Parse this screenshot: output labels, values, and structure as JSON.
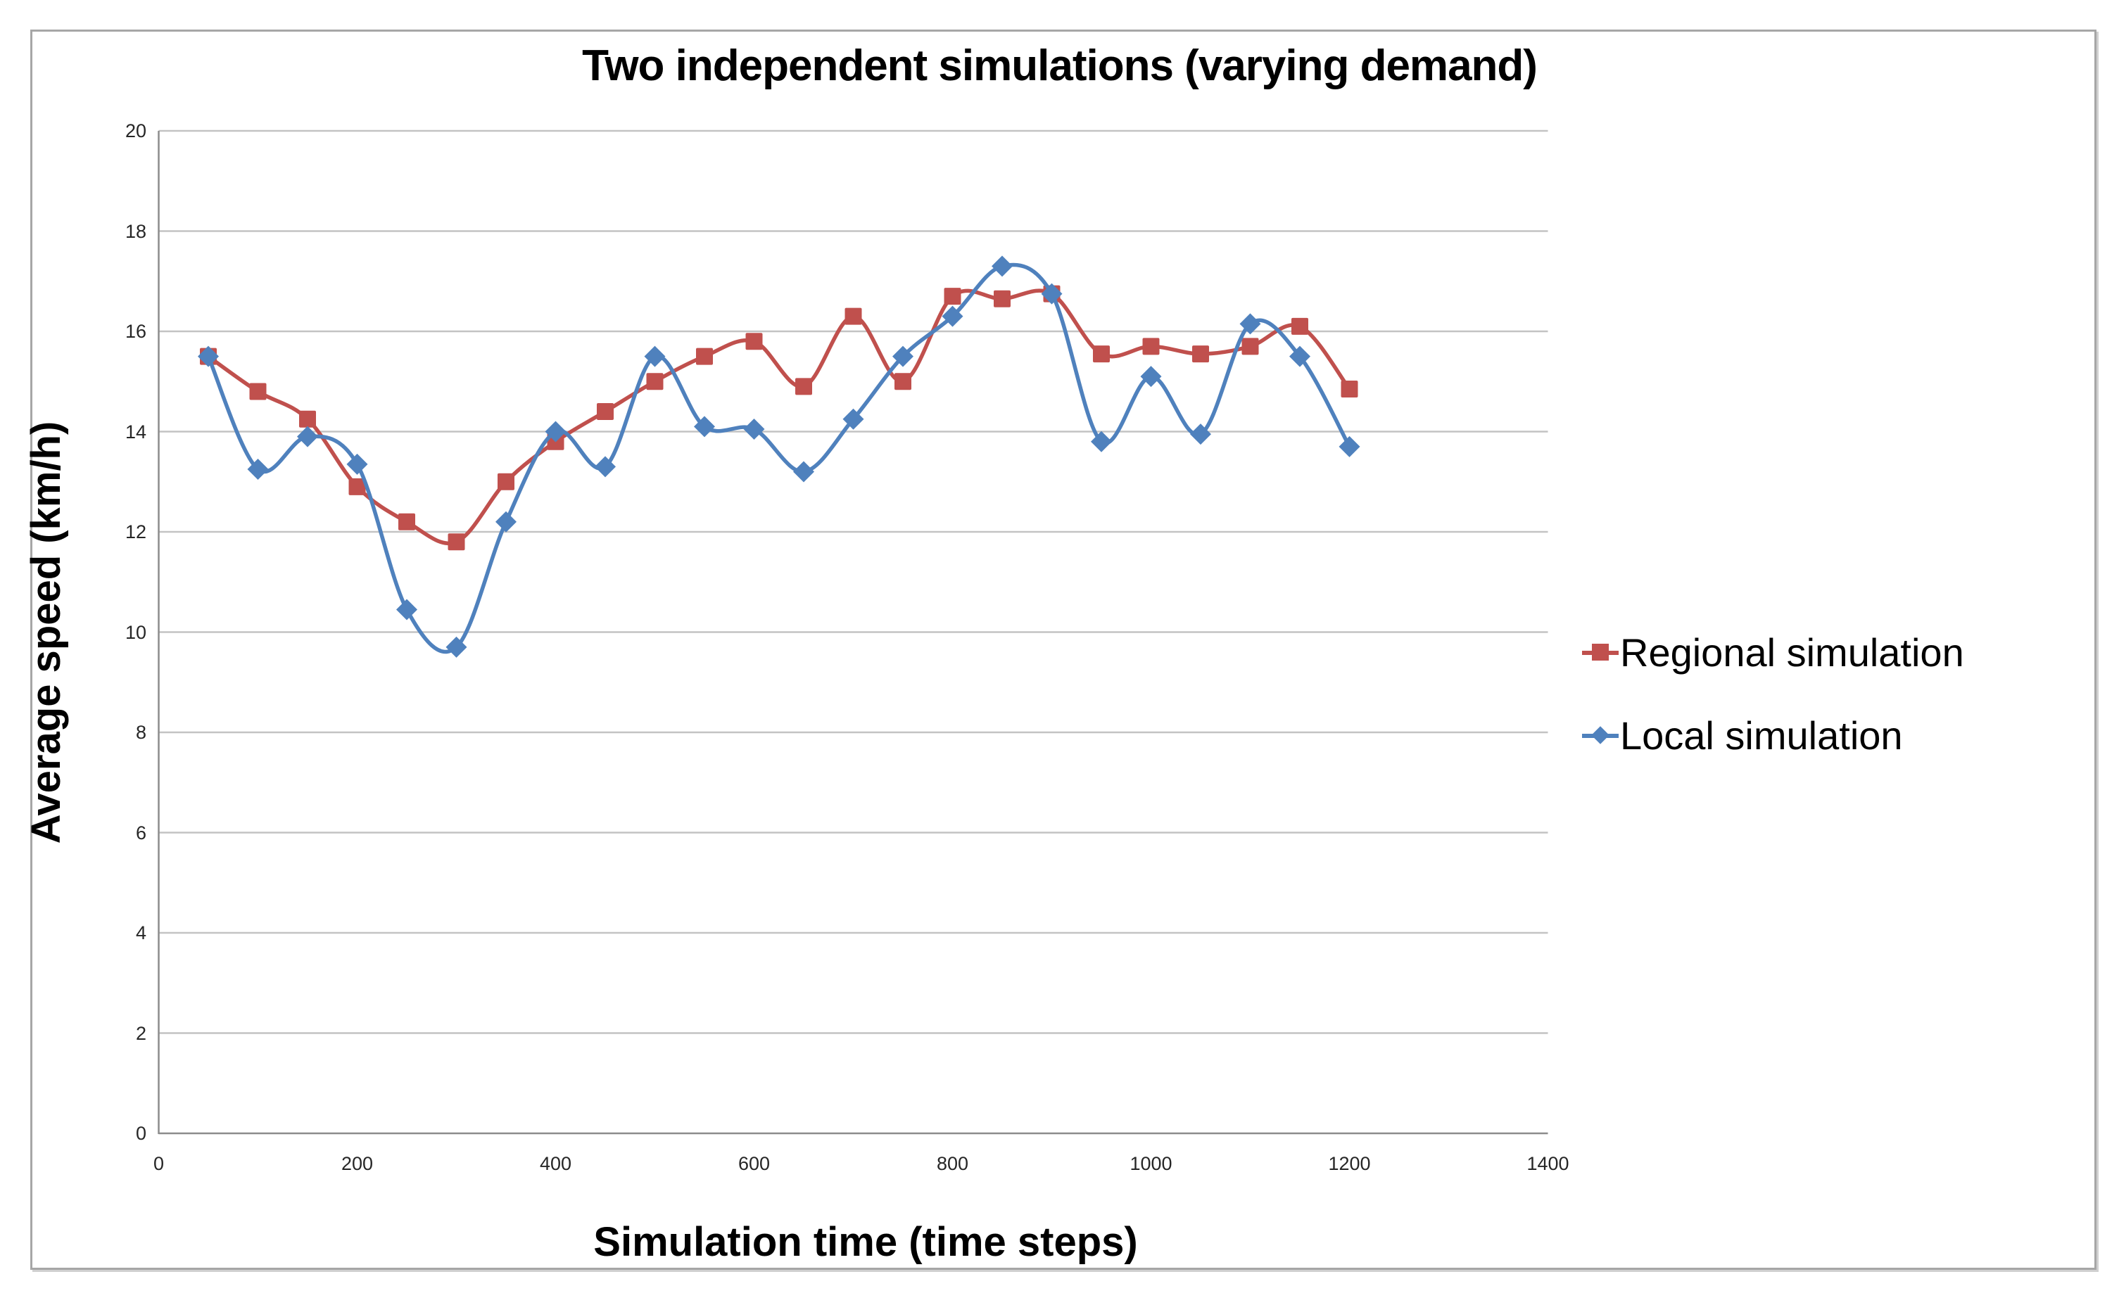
{
  "chart_data": {
    "type": "line",
    "title": "Two independent simulations (varying demand)",
    "xlabel": "Simulation time (time steps)",
    "ylabel": "Average speed (km/h)",
    "xlim": [
      0,
      1400
    ],
    "ylim": [
      0,
      20
    ],
    "x_ticks": [
      0,
      200,
      400,
      600,
      800,
      1000,
      1200,
      1400
    ],
    "y_ticks": [
      0,
      2,
      4,
      6,
      8,
      10,
      12,
      14,
      16,
      18,
      20
    ],
    "grid": "horizontal",
    "gridline_color": "#c3c3c3",
    "axis_color": "#8c8c8c",
    "smooth": true,
    "legend_position": "right",
    "x": [
      50,
      100,
      150,
      200,
      250,
      300,
      350,
      400,
      450,
      500,
      550,
      600,
      650,
      700,
      750,
      800,
      850,
      900,
      950,
      1000,
      1050,
      1100,
      1150,
      1200
    ],
    "series": [
      {
        "name": "Regional simulation",
        "color": "#C0504D",
        "marker": "square",
        "values": [
          15.5,
          14.8,
          14.25,
          12.9,
          12.2,
          11.8,
          13.0,
          13.8,
          14.4,
          15.0,
          15.5,
          15.8,
          14.9,
          16.3,
          15.0,
          16.7,
          16.65,
          16.75,
          15.55,
          15.7,
          15.55,
          15.7,
          16.1,
          14.85
        ]
      },
      {
        "name": "Local simulation",
        "color": "#4F81BD",
        "marker": "diamond",
        "values": [
          15.5,
          13.25,
          13.9,
          13.35,
          10.45,
          9.7,
          12.2,
          14.0,
          13.3,
          15.5,
          14.1,
          14.05,
          13.2,
          14.25,
          15.5,
          16.3,
          17.3,
          16.75,
          13.8,
          15.1,
          13.95,
          16.15,
          15.5,
          13.7
        ]
      }
    ]
  }
}
